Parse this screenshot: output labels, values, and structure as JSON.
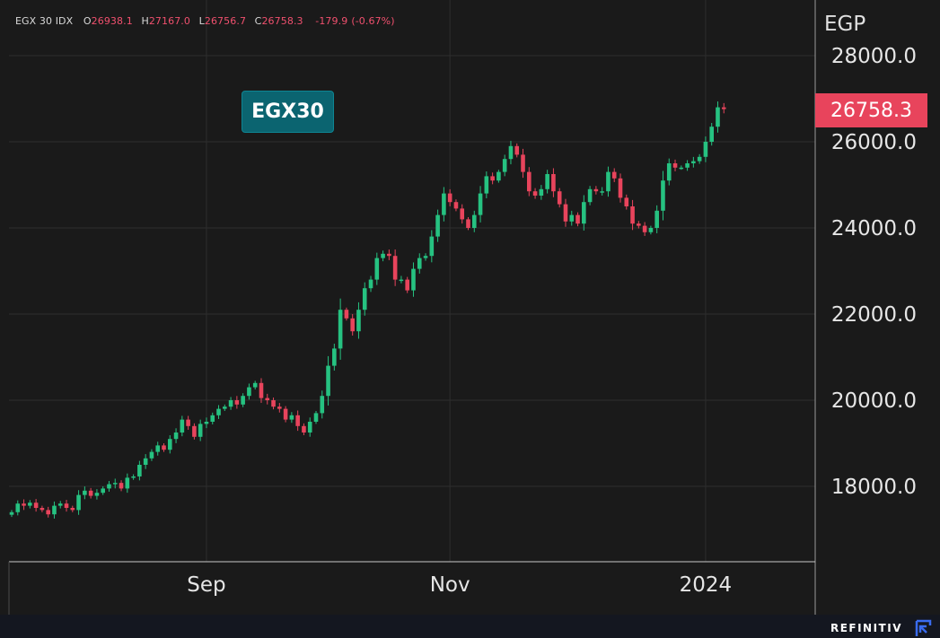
{
  "legend": {
    "symbol": "EGX 30 IDX",
    "open_label": "O",
    "open": "26938.1",
    "high_label": "H",
    "high": "27167.0",
    "low_label": "L",
    "low": "26756.7",
    "close_label": "C",
    "close": "26758.3",
    "change": "-179.9",
    "change_pct": "(-0.67%)"
  },
  "badge_label": "EGX30",
  "axis_unit": "EGP",
  "last_price_tag": "26758.3",
  "brand": "REFINITIV",
  "colors": {
    "up": "#26c281",
    "down": "#e8445c",
    "background": "#1a1a1a",
    "grid": "#2e2e2e",
    "badge": "#0b6470"
  },
  "chart_data": {
    "type": "candlestick",
    "title": "",
    "ylabel": "EGP",
    "ylim": [
      16300,
      28800
    ],
    "yticks": [
      18000,
      20000,
      22000,
      24000,
      26000,
      28000
    ],
    "ytick_labels": [
      "18000.0",
      "20000.0",
      "22000.0",
      "24000.0",
      "26000.0",
      "28000.0"
    ],
    "xtick_labels": [
      "Sep",
      "Nov",
      "2024"
    ],
    "xtick_index": [
      32,
      72,
      114
    ],
    "grid": true,
    "closes": [
      17400,
      17600,
      17550,
      17620,
      17500,
      17450,
      17350,
      17550,
      17600,
      17500,
      17450,
      17800,
      17900,
      17780,
      17850,
      17950,
      18050,
      18080,
      17950,
      18200,
      18230,
      18500,
      18650,
      18800,
      18950,
      18850,
      19100,
      19250,
      19550,
      19400,
      19150,
      19450,
      19500,
      19650,
      19800,
      19850,
      20000,
      19900,
      20100,
      20300,
      20400,
      20050,
      20000,
      19850,
      19800,
      19550,
      19650,
      19400,
      19250,
      19500,
      19700,
      20100,
      20800,
      21200,
      22100,
      21900,
      21600,
      22100,
      22600,
      22800,
      23300,
      23400,
      23350,
      22800,
      22800,
      22550,
      23050,
      23300,
      23350,
      23800,
      24300,
      24800,
      24600,
      24450,
      24200,
      24000,
      24300,
      24800,
      25200,
      25100,
      25300,
      25600,
      25900,
      25700,
      25300,
      24850,
      24750,
      24900,
      25250,
      24850,
      24550,
      24150,
      24300,
      24100,
      24600,
      24900,
      24850,
      24850,
      25300,
      25150,
      24700,
      24500,
      24100,
      24050,
      23900,
      24000,
      24400,
      25100,
      25500,
      25400,
      25400,
      25500,
      25550,
      25650,
      26000,
      26350,
      26800,
      26758.3
    ]
  }
}
